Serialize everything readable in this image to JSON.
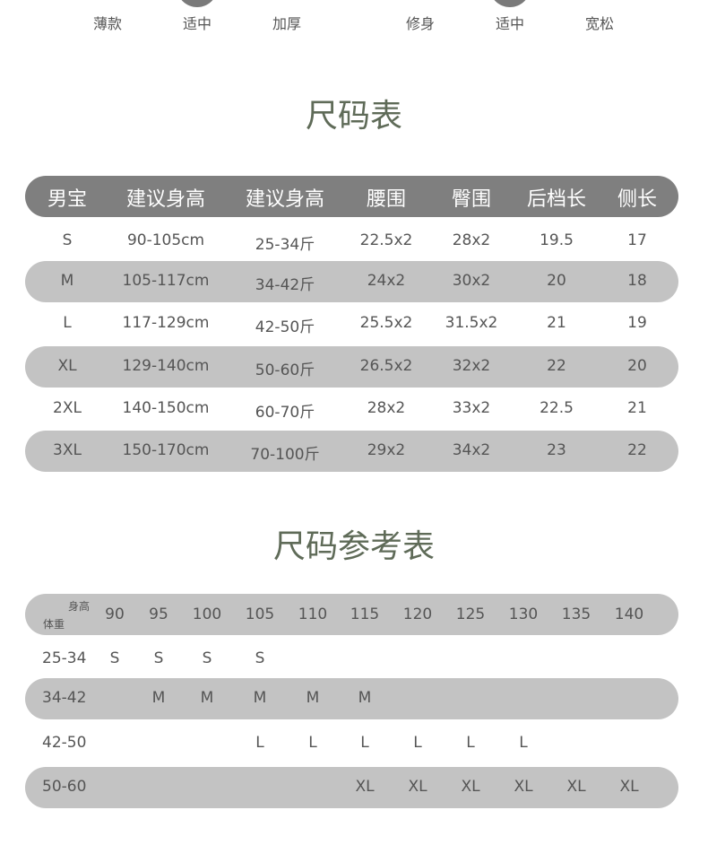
{
  "fit": {
    "thickness": [
      "薄款",
      "适中",
      "加厚"
    ],
    "cut": [
      "修身",
      "适中",
      "宽松"
    ]
  },
  "size_table": {
    "title": "尺码表",
    "headers": [
      "男宝",
      "建议身高",
      "建议身高",
      "腰围",
      "臀围",
      "后档长",
      "侧长"
    ],
    "rows": [
      [
        "S",
        "90-105cm",
        "25-34斤",
        "22.5x2",
        "28x2",
        "19.5",
        "17"
      ],
      [
        "M",
        "105-117cm",
        "34-42斤",
        "24x2",
        "30x2",
        "20",
        "18"
      ],
      [
        "L",
        "117-129cm",
        "42-50斤",
        "25.5x2",
        "31.5x2",
        "21",
        "19"
      ],
      [
        "XL",
        "129-140cm",
        "50-60斤",
        "26.5x2",
        "32x2",
        "22",
        "20"
      ],
      [
        "2XL",
        "140-150cm",
        "60-70斤",
        "28x2",
        "33x2",
        "22.5",
        "21"
      ],
      [
        "3XL",
        "150-170cm",
        "70-100斤",
        "29x2",
        "34x2",
        "23",
        "22"
      ]
    ]
  },
  "ref_table": {
    "title": "尺码参考表",
    "corner_top": "身高",
    "corner_bottom": "体重",
    "heights": [
      "90",
      "95",
      "100",
      "105",
      "110",
      "115",
      "120",
      "125",
      "130",
      "135",
      "140"
    ],
    "rows": [
      {
        "weight": "25-34",
        "cells": [
          "S",
          "S",
          "S",
          "S",
          "",
          "",
          "",
          "",
          "",
          "",
          ""
        ]
      },
      {
        "weight": "34-42",
        "cells": [
          "",
          "M",
          "M",
          "M",
          "M",
          "M",
          "",
          "",
          "",
          "",
          ""
        ]
      },
      {
        "weight": "42-50",
        "cells": [
          "",
          "",
          "",
          "L",
          "L",
          "L",
          "L",
          "L",
          "L",
          "",
          ""
        ]
      },
      {
        "weight": "50-60",
        "cells": [
          "",
          "",
          "",
          "",
          "",
          "XL",
          "XL",
          "XL",
          "XL",
          "XL",
          "XL"
        ]
      }
    ]
  },
  "colors": {
    "title": "#5f6b58",
    "header_bar": "#7f7f7f",
    "alt_row": "#c3c3c3"
  }
}
